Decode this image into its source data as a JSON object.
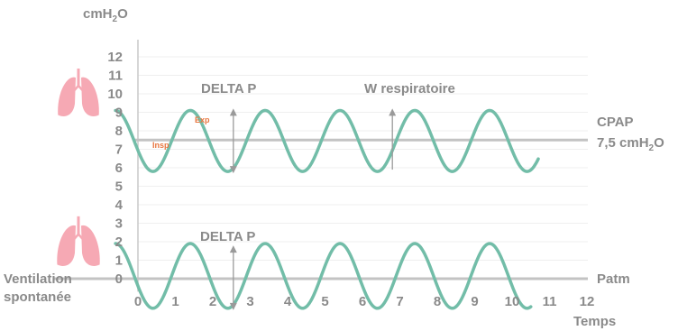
{
  "chart_data": {
    "type": "line",
    "title": "",
    "ylabel": {
      "main": "cmH",
      "sub": "2",
      "tail": "O"
    },
    "xlabel": "Temps",
    "ylim": [
      0,
      12
    ],
    "xlim": [
      0,
      12
    ],
    "y_ticks": [
      "0",
      "1",
      "2",
      "3",
      "4",
      "5",
      "6",
      "7",
      "8",
      "9",
      "10",
      "11",
      "12"
    ],
    "x_ticks": [
      "0",
      "1",
      "2",
      "3",
      "4",
      "5",
      "6",
      "7",
      "8",
      "9",
      "10",
      "11",
      "12"
    ],
    "grid": true,
    "series": [
      {
        "label_text": "Ventilation spontanée",
        "label_lines": [
          "Ventilation",
          "spontanée"
        ],
        "baseline_value": 0,
        "baseline_label": "Patm",
        "x_start": 0,
        "x_end": 10.5,
        "period": 2,
        "min": -1.6,
        "max": 1.9,
        "start_x": -0.6,
        "start_value": 1.9,
        "color": "#72bda8"
      },
      {
        "baseline_value": 7.5,
        "baseline_label": {
          "line1": "CPAP",
          "line2_main": "7,5 cmH",
          "line2_sub": "2",
          "line2_tail": "O"
        },
        "x_start": 0,
        "x_end": 10.7,
        "period": 2,
        "min": 5.8,
        "max": 9.1,
        "start_x": -0.6,
        "start_value": 9.1,
        "color": "#72bda8"
      }
    ],
    "annotations": {
      "delta_p_top": "DELTA P",
      "delta_p_bottom": "DELTA P",
      "w_respiratoire": "W respiratoire",
      "insp": "Insp",
      "exp": "Exp"
    },
    "colors": {
      "axis": "#c8c8c8",
      "grid": "#efefef",
      "baseline": "#c3c3c3",
      "curve": "#72bda8",
      "text": "#8a8a8a",
      "accent": "#e8763f",
      "lung": "#f6a9b4",
      "arrow": "#9a9a9a"
    },
    "icons": [
      "lungs-icon",
      "lungs-icon"
    ]
  }
}
